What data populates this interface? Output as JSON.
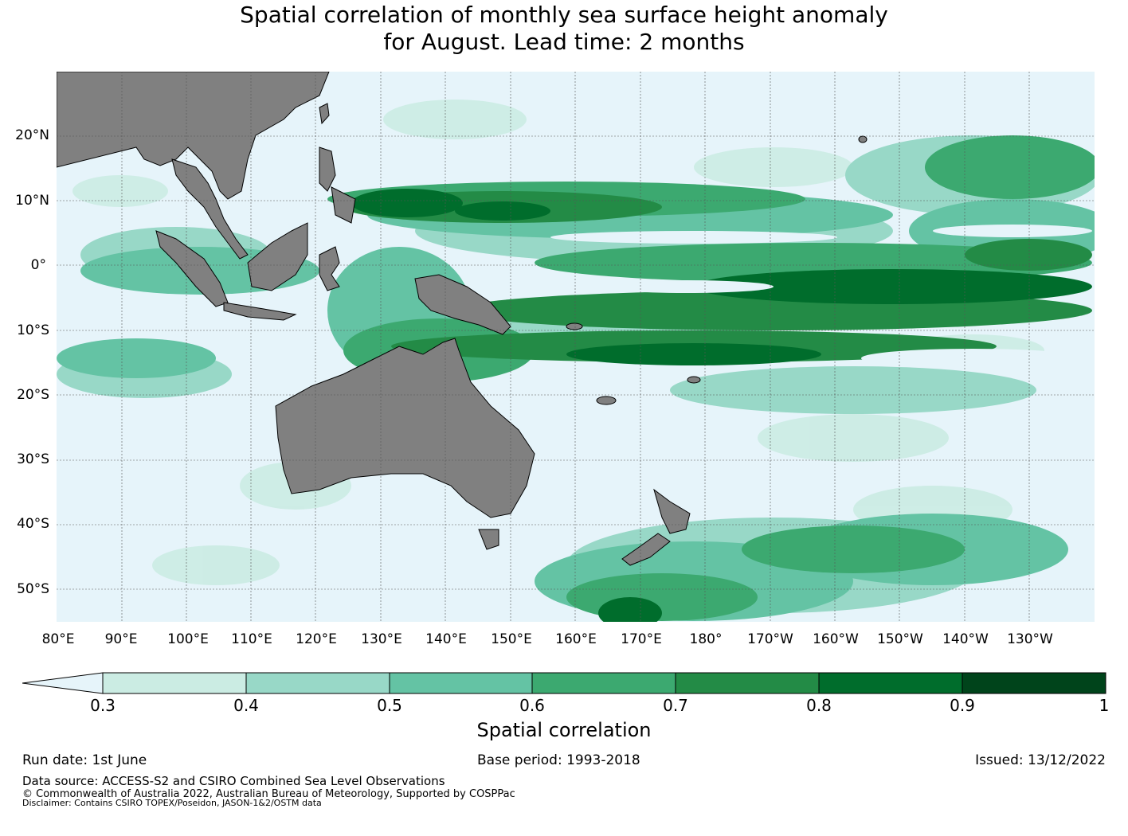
{
  "title": {
    "line1": "Spatial correlation of monthly sea surface height anomaly",
    "line2": "for August. Lead time: 2 months"
  },
  "map": {
    "lat_labels": [
      "20°N",
      "10°N",
      "0°",
      "10°S",
      "20°S",
      "30°S",
      "40°S",
      "50°S"
    ],
    "lon_labels": [
      "80°E",
      "90°E",
      "100°E",
      "110°E",
      "120°E",
      "130°E",
      "140°E",
      "150°E",
      "160°E",
      "170°E",
      "180°",
      "170°W",
      "160°W",
      "150°W",
      "140°W",
      "130°W"
    ],
    "colors": {
      "ocean_low": "#e6f4fa",
      "land": "#808080",
      "coast": "#000000",
      "grid": "#555555"
    }
  },
  "colorbar": {
    "label": "Spatial correlation",
    "ticks": [
      "0.3",
      "0.4",
      "0.5",
      "0.6",
      "0.7",
      "0.8",
      "0.9",
      "1"
    ],
    "colors": [
      "#e6f4fa",
      "#cbece3",
      "#98d8c7",
      "#64c3a4",
      "#3ca970",
      "#238b46",
      "#006d2c",
      "#00441b"
    ]
  },
  "footer": {
    "run_date": "Run date: 1st June",
    "base_period": "Base period: 1993-2018",
    "issued": "Issued: 13/12/2022",
    "data_source": "Data source: ACCESS-S2 and CSIRO Combined Sea Level Observations",
    "copyright": "© Commonwealth of Australia 2022, Australian Bureau of Meteorology, Supported by COSPPac",
    "disclaimer": "Disclaimer: Contains CSIRO TOPEX/Poseidon, JASON-1&2/OSTM data"
  }
}
